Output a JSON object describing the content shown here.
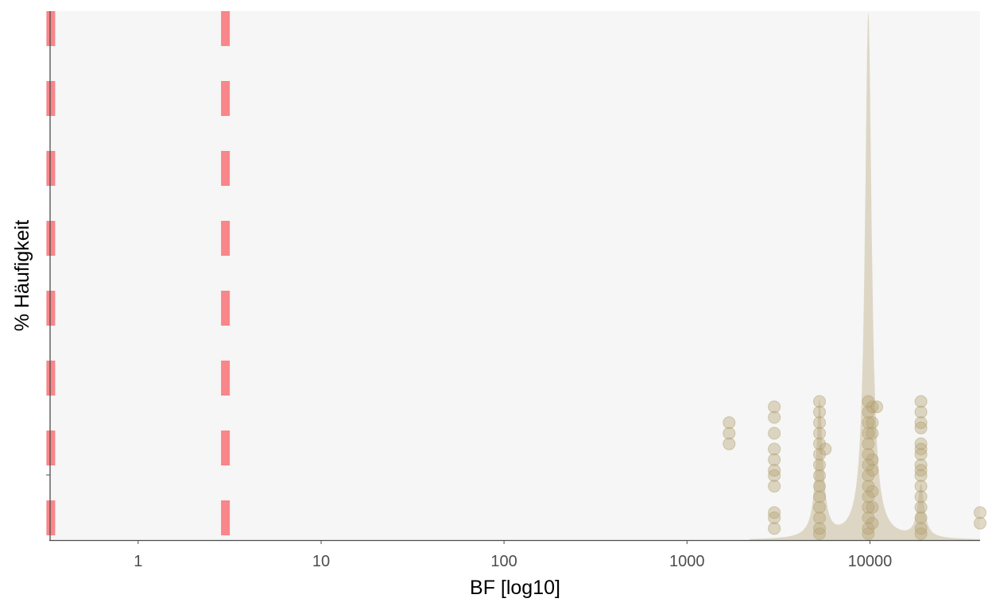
{
  "chart_data": {
    "type": "scatter",
    "title": "",
    "xlabel": "BF [log10]",
    "ylabel": "% Häufigkeit",
    "x_scale": "log10",
    "xlim": [
      0.33,
      40000
    ],
    "x_ticks": [
      {
        "value": 1,
        "label": "1"
      },
      {
        "value": 10,
        "label": "10"
      },
      {
        "value": 100,
        "label": "100"
      },
      {
        "value": 1000,
        "label": "1000"
      },
      {
        "value": 10000,
        "label": "10000"
      }
    ],
    "reference_lines": [
      {
        "x": 0.333,
        "style": "dashed",
        "color": "#f8868a"
      },
      {
        "x": 3,
        "style": "dashed",
        "color": "#f8868a"
      }
    ],
    "density_color": "#d9d0bc",
    "point_color": "#b3a272",
    "density_peaks": [
      {
        "x": 5300,
        "relative_height": 0.26
      },
      {
        "x": 9800,
        "relative_height": 1.0
      },
      {
        "x": 19000,
        "relative_height": 0.1
      }
    ],
    "points": [
      {
        "x": 1700,
        "heights": [
          0.21,
          0.19,
          0.17
        ]
      },
      {
        "x": 3000,
        "heights": [
          0.24,
          0.22,
          0.19,
          0.16,
          0.14,
          0.12,
          0.11,
          0.09,
          0.04,
          0.03,
          0.01
        ]
      },
      {
        "x": 5300,
        "heights": [
          0.25,
          0.23,
          0.21,
          0.19,
          0.17,
          0.15,
          0.13,
          0.11,
          0.09,
          0.07,
          0.05,
          0.03,
          0.01,
          0.0
        ]
      },
      {
        "x": 5700,
        "heights": [
          0.16
        ]
      },
      {
        "x": 9800,
        "heights": [
          0.25,
          0.23,
          0.21,
          0.19,
          0.17,
          0.15,
          0.13,
          0.11,
          0.09,
          0.07,
          0.05,
          0.03,
          0.01,
          0.0
        ]
      },
      {
        "x": 10300,
        "heights": [
          0.24,
          0.21,
          0.19,
          0.14,
          0.12,
          0.08,
          0.05,
          0.02
        ]
      },
      {
        "x": 10900,
        "heights": [
          0.24
        ]
      },
      {
        "x": 19000,
        "heights": [
          0.25,
          0.23,
          0.21,
          0.2,
          0.17,
          0.16,
          0.15,
          0.13,
          0.12,
          0.11,
          0.09,
          0.07,
          0.05,
          0.03,
          0.01,
          0.0
        ]
      },
      {
        "x": 40000,
        "heights": [
          0.04,
          0.02
        ]
      }
    ]
  }
}
